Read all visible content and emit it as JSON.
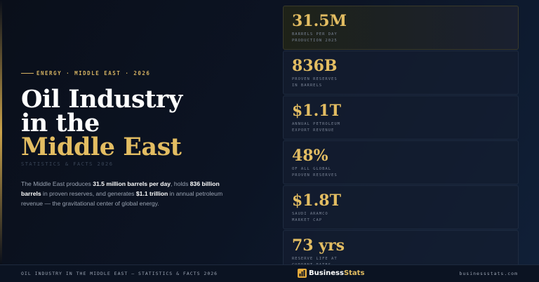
{
  "eyebrow": "ENERGY · MIDDLE EAST · 2026",
  "title": {
    "line1": "Oil Industry",
    "line2": "in the",
    "line3": "Middle East"
  },
  "subtitle": "STATISTICS & FACTS 2026",
  "description": [
    {
      "text": "The Middle East produces ",
      "bold": false
    },
    {
      "text": "31.5 million barrels per day",
      "bold": true
    },
    {
      "text": ", holds ",
      "bold": false
    },
    {
      "text": "836 billion barrels",
      "bold": true
    },
    {
      "text": " in proven reserves, and generates ",
      "bold": false
    },
    {
      "text": "$1.1 trillion",
      "bold": true
    },
    {
      "text": " in annual petroleum revenue — the gravitational center of global energy.",
      "bold": false
    }
  ],
  "stats": [
    {
      "value": "31.5M",
      "label": [
        "BARRELS PER DAY",
        "PRODUCTION 2025"
      ]
    },
    {
      "value": "836B",
      "label": [
        "PROVEN RESERVES",
        "IN BARRELS"
      ]
    },
    {
      "value": "$1.1T",
      "label": [
        "ANNUAL PETROLEUM",
        "EXPORT REVENUE"
      ]
    },
    {
      "value": "48%",
      "label": [
        "OF ALL GLOBAL",
        "PROVEN RESERVES"
      ]
    },
    {
      "value": "$1.8T",
      "label": [
        "SAUDI ARAMCO",
        "MARKET CAP"
      ]
    },
    {
      "value": "73 yrs",
      "label": [
        "RESERVE LIFE AT",
        "CURRENT RATES"
      ]
    }
  ],
  "footer": {
    "left": "OIL INDUSTRY IN THE MIDDLE EAST — STATISTICS & FACTS 2026",
    "logo": {
      "part1": "Business",
      "part2": "Stats"
    },
    "url": "businessstats.com"
  }
}
